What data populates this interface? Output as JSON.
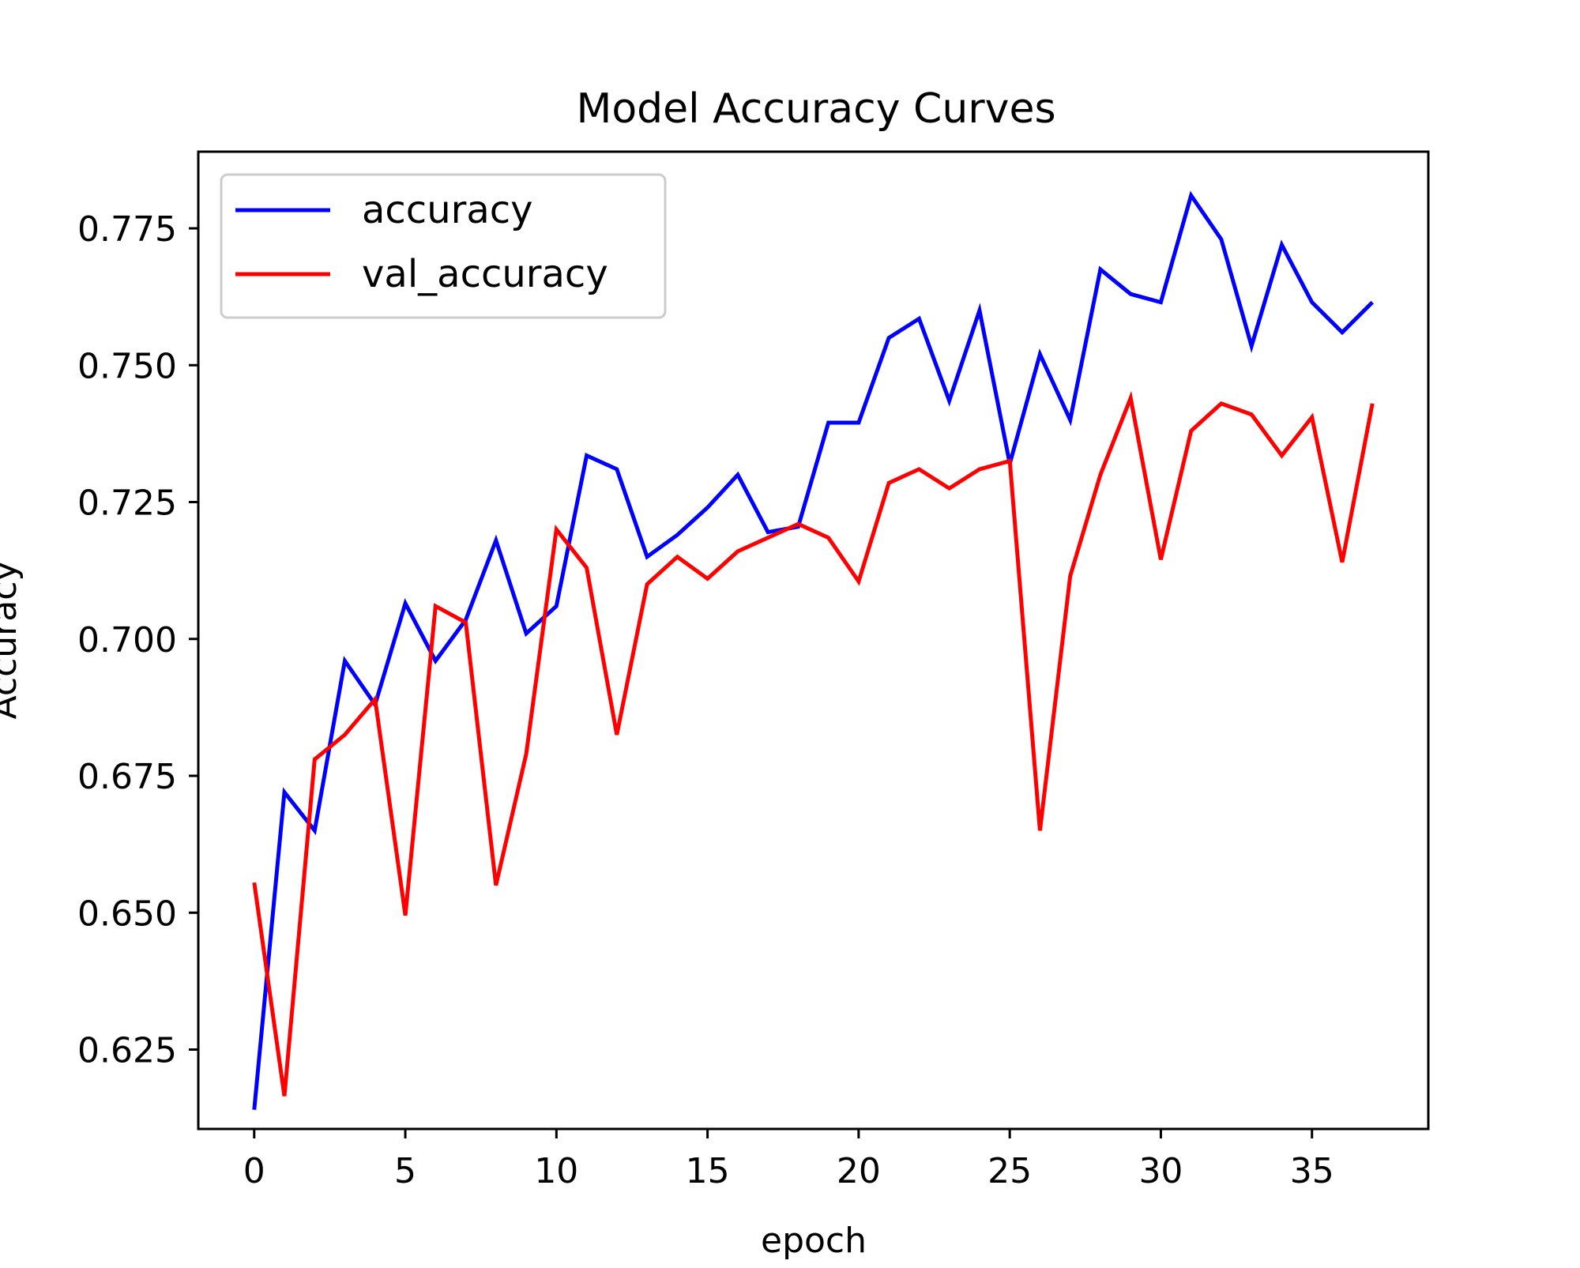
{
  "chart_data": {
    "type": "line",
    "title": "Model Accuracy Curves",
    "xlabel": "epoch",
    "ylabel": "Accuracy",
    "xlim": [
      -1.85,
      38.85
    ],
    "ylim": [
      0.6105,
      0.789
    ],
    "x_ticks": [
      0,
      5,
      10,
      15,
      20,
      25,
      30,
      35
    ],
    "x_tick_labels": [
      "0",
      "5",
      "10",
      "15",
      "20",
      "25",
      "30",
      "35"
    ],
    "y_ticks": [
      0.625,
      0.65,
      0.675,
      0.7,
      0.725,
      0.75,
      0.775
    ],
    "y_tick_labels": [
      "0.625",
      "0.650",
      "0.675",
      "0.700",
      "0.725",
      "0.750",
      "0.775"
    ],
    "grid": false,
    "legend_position": "upper-left",
    "x": [
      0,
      1,
      2,
      3,
      4,
      5,
      6,
      7,
      8,
      9,
      10,
      11,
      12,
      13,
      14,
      15,
      16,
      17,
      18,
      19,
      20,
      21,
      22,
      23,
      24,
      25,
      26,
      27,
      28,
      29,
      30,
      31,
      32,
      33,
      34,
      35,
      36,
      37
    ],
    "series": [
      {
        "name": "accuracy",
        "color": "#0000ff",
        "values": [
          0.614,
          0.672,
          0.665,
          0.696,
          0.688,
          0.7065,
          0.696,
          0.7035,
          0.718,
          0.701,
          0.706,
          0.7335,
          0.731,
          0.715,
          0.719,
          0.724,
          0.73,
          0.7195,
          0.7205,
          0.7395,
          0.7395,
          0.755,
          0.7585,
          0.7435,
          0.76,
          0.732,
          0.752,
          0.74,
          0.7675,
          0.763,
          0.7615,
          0.781,
          0.773,
          0.7535,
          0.772,
          0.7615,
          0.756,
          0.7615
        ]
      },
      {
        "name": "val_accuracy",
        "color": "#ff0000",
        "values": [
          0.6555,
          0.6165,
          0.678,
          0.6825,
          0.689,
          0.6495,
          0.706,
          0.703,
          0.655,
          0.679,
          0.72,
          0.713,
          0.6825,
          0.71,
          0.715,
          0.711,
          0.716,
          0.7185,
          0.721,
          0.7185,
          0.7105,
          0.7285,
          0.731,
          0.7275,
          0.731,
          0.7325,
          0.665,
          0.7115,
          0.73,
          0.744,
          0.7145,
          0.738,
          0.743,
          0.741,
          0.7335,
          0.7405,
          0.714,
          0.743
        ]
      }
    ]
  }
}
